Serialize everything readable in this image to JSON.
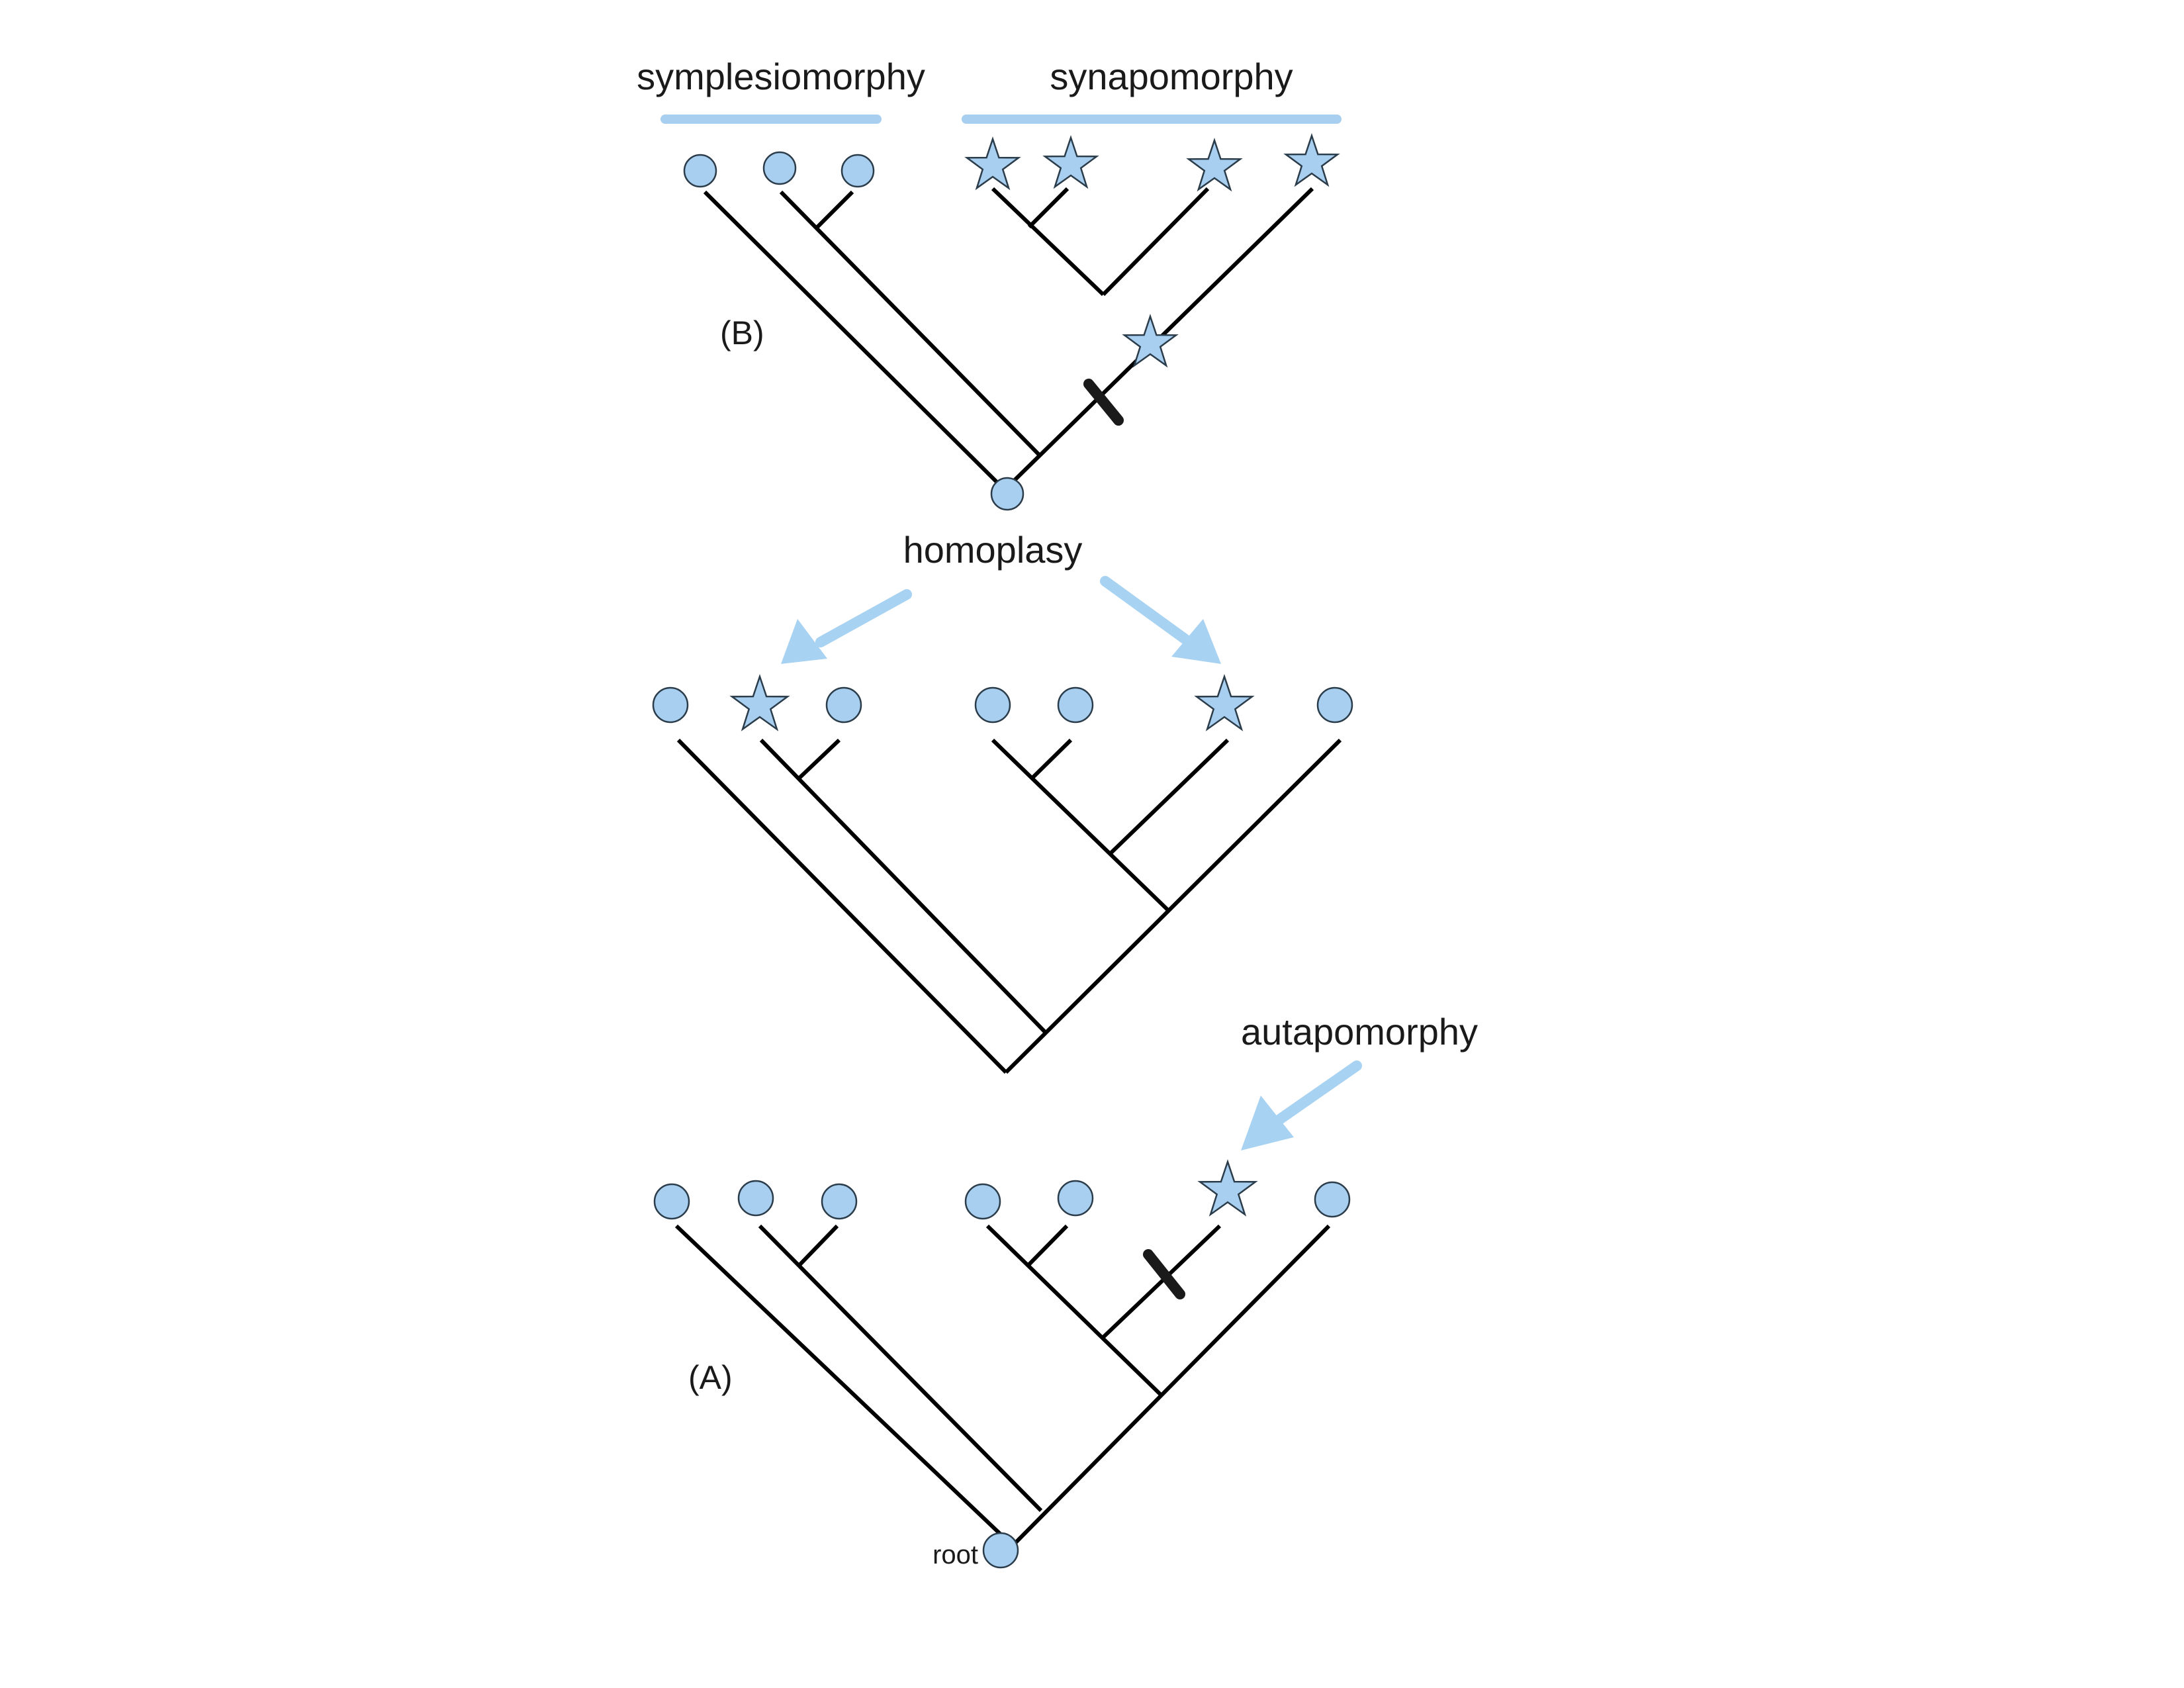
{
  "labels": {
    "symplesiomorphy": "symplesiomorphy",
    "synapomorphy": "synapomorphy",
    "panel_b": "(B)",
    "homoplasy": "homoplasy",
    "autapomorphy": "autapomorphy",
    "panel_a": "(A)",
    "root": "root"
  },
  "colors": {
    "character_state_fill": "#a8cff0",
    "branch": "#000000",
    "annotation_bar": "#a8cff0"
  },
  "icons": {
    "ancestral_state": "circle",
    "derived_state": "star",
    "character_change": "bar-tick"
  }
}
